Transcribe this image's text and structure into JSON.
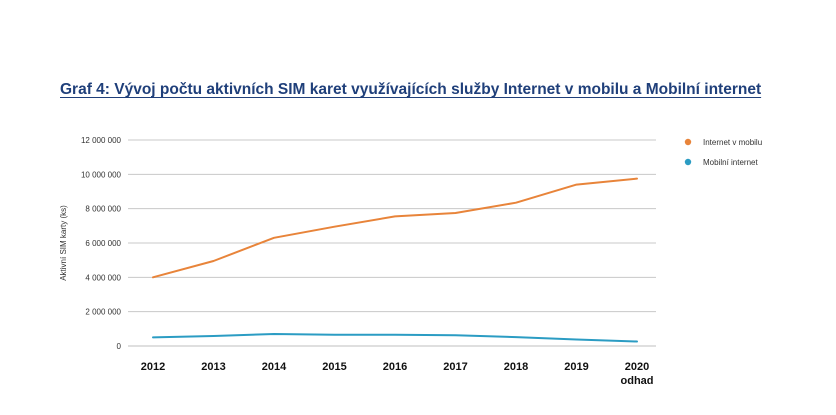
{
  "chart_data": {
    "type": "line",
    "title": "Graf 4: Vývoj počtu aktivních SIM karet využívajících služby Internet v mobilu a Mobilní internet",
    "xlabel": "",
    "ylabel": "Aktivní SIM karty (ks)",
    "ylim": [
      0,
      12000000
    ],
    "yticks": [
      0,
      2000000,
      4000000,
      6000000,
      8000000,
      10000000,
      12000000
    ],
    "ytick_labels": [
      "0",
      "2 000 000",
      "4 000 000",
      "6 000 000",
      "8 000 000",
      "10 000 000",
      "12 000 000"
    ],
    "categories": [
      "2012",
      "2013",
      "2014",
      "2015",
      "2016",
      "2017",
      "2018",
      "2019",
      "2020"
    ],
    "category_sublabels": [
      "",
      "",
      "",
      "",
      "",
      "",
      "",
      "",
      "odhad"
    ],
    "grid": true,
    "legend_position": "right",
    "series": [
      {
        "name": "Internet v mobilu",
        "color": "#e8843a",
        "values": [
          4000000,
          4950000,
          6300000,
          6950000,
          7550000,
          7750000,
          8350000,
          9400000,
          9750000
        ]
      },
      {
        "name": "Mobilní internet",
        "color": "#2b9cc3",
        "values": [
          500000,
          580000,
          700000,
          650000,
          660000,
          630000,
          520000,
          380000,
          260000
        ]
      }
    ]
  }
}
